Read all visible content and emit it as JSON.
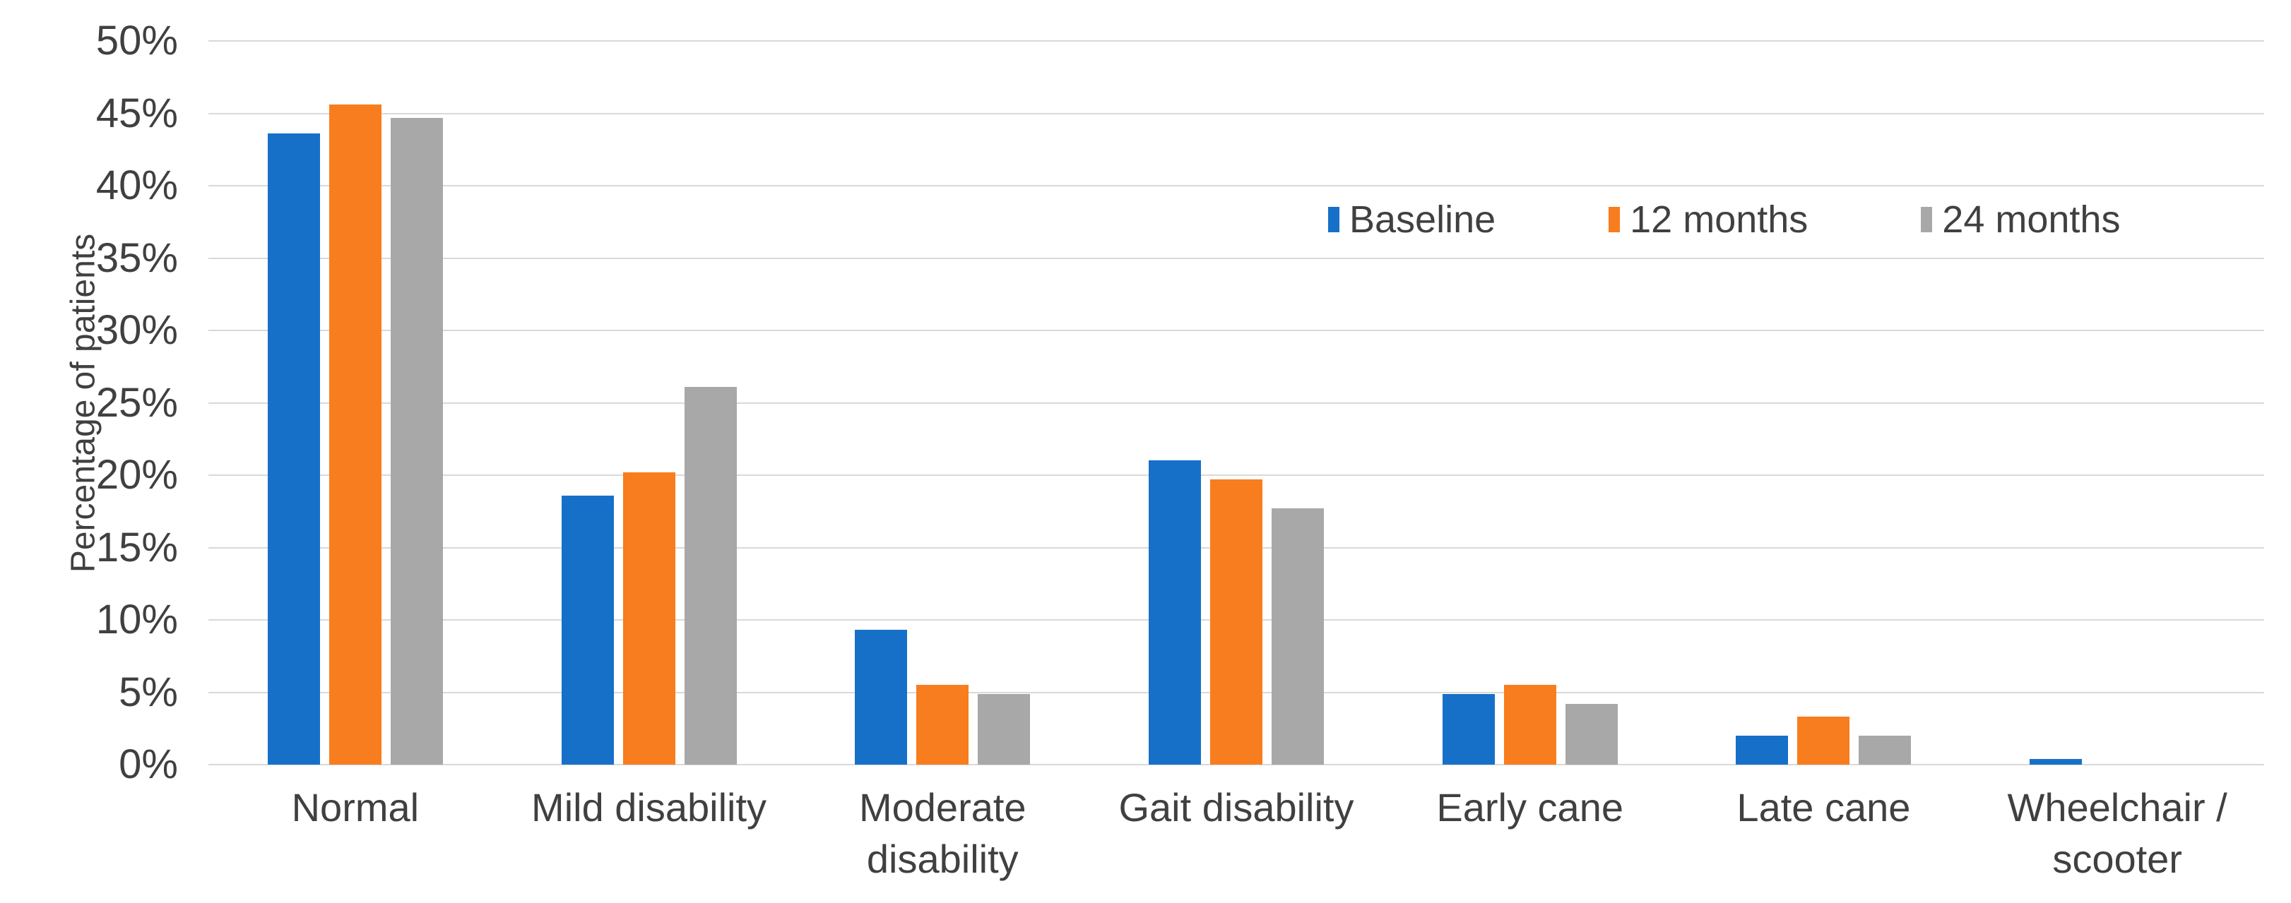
{
  "chart_data": {
    "type": "bar",
    "title": "",
    "categories": [
      "Normal",
      "Mild disability",
      "Moderate\ndisability",
      "Gait disability",
      "Early cane",
      "Late cane",
      "Wheelchair /\nscooter"
    ],
    "series": [
      {
        "name": "Baseline",
        "color": "#1770C8",
        "values": [
          43.6,
          18.6,
          9.3,
          21.0,
          4.9,
          2.0,
          0.4
        ]
      },
      {
        "name": "12 months",
        "color": "#F87D1E",
        "values": [
          45.6,
          20.2,
          5.5,
          19.7,
          5.5,
          3.3,
          0
        ]
      },
      {
        "name": "24 months",
        "color": "#A8A8A8",
        "values": [
          44.7,
          26.1,
          4.9,
          17.7,
          4.2,
          2.0,
          0
        ]
      }
    ],
    "xlabel": "",
    "ylabel": "Percentage of patients",
    "ylim": [
      0,
      50
    ],
    "ytick_step": 5,
    "ytick_suffix": "%",
    "grid": true,
    "legend_position": "top-right",
    "text_color": "#404040",
    "gridline_color": "#D9D9D9",
    "background": "#FFFFFF"
  }
}
